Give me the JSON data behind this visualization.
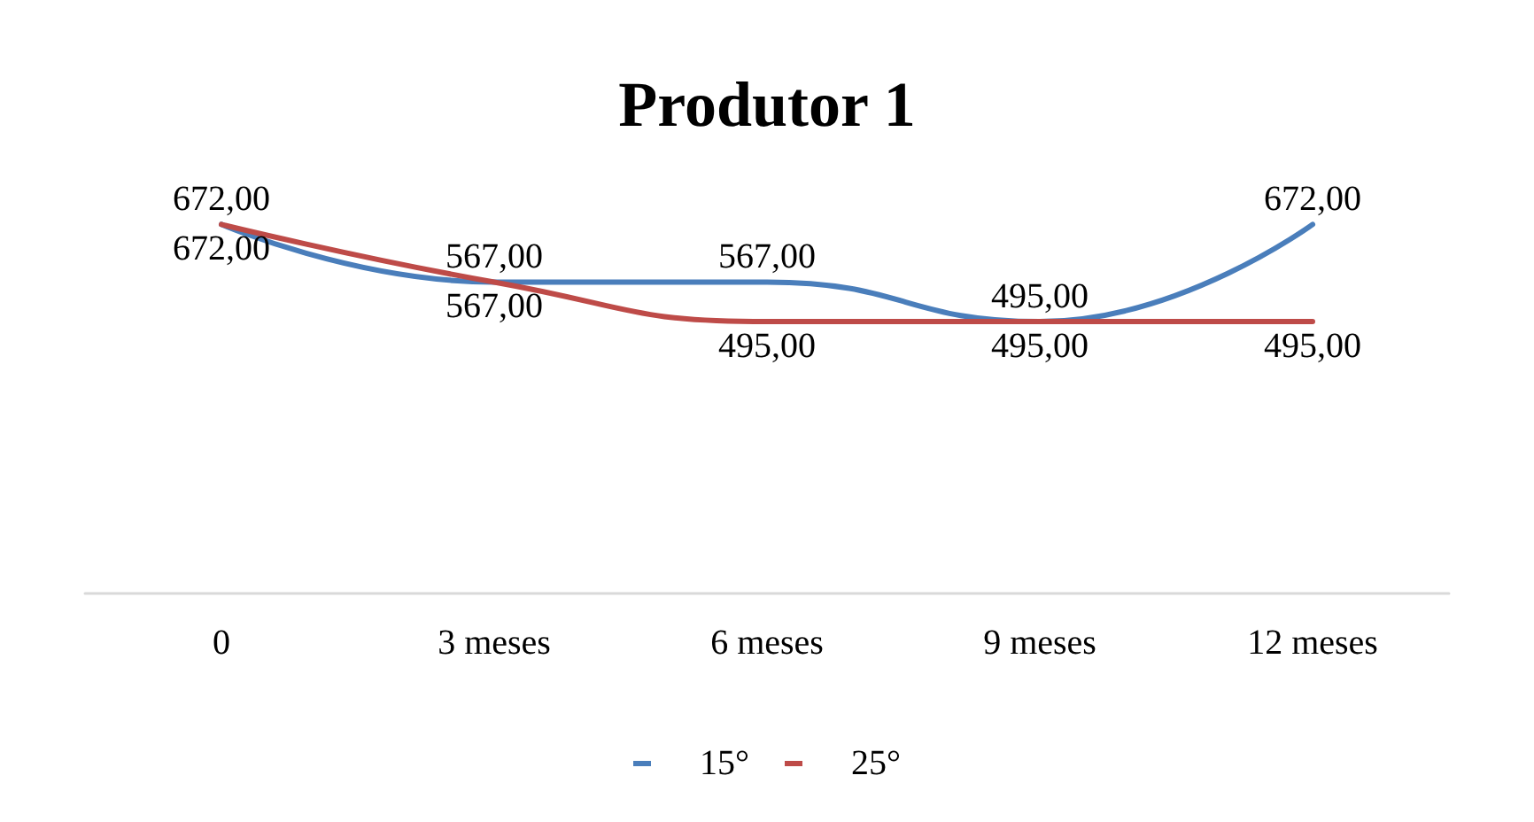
{
  "chart_data": {
    "type": "line",
    "title": "Produtor 1",
    "categories": [
      "0",
      "3 meses",
      "6 meses",
      "9 meses",
      "12 meses"
    ],
    "series": [
      {
        "name": "15°",
        "color": "#4a7ebb",
        "values": [
          672,
          567,
          567,
          495,
          672
        ],
        "value_labels": [
          "672,00",
          "567,00",
          "567,00",
          "495,00",
          "672,00"
        ]
      },
      {
        "name": "25°",
        "color": "#be4b48",
        "values": [
          672,
          567,
          495,
          495,
          495
        ],
        "value_labels": [
          "672,00",
          "567,00",
          "495,00",
          "495,00",
          "495,00"
        ]
      }
    ],
    "grid": false,
    "legend": "bottom",
    "marker": "none",
    "line_style": "solid"
  }
}
